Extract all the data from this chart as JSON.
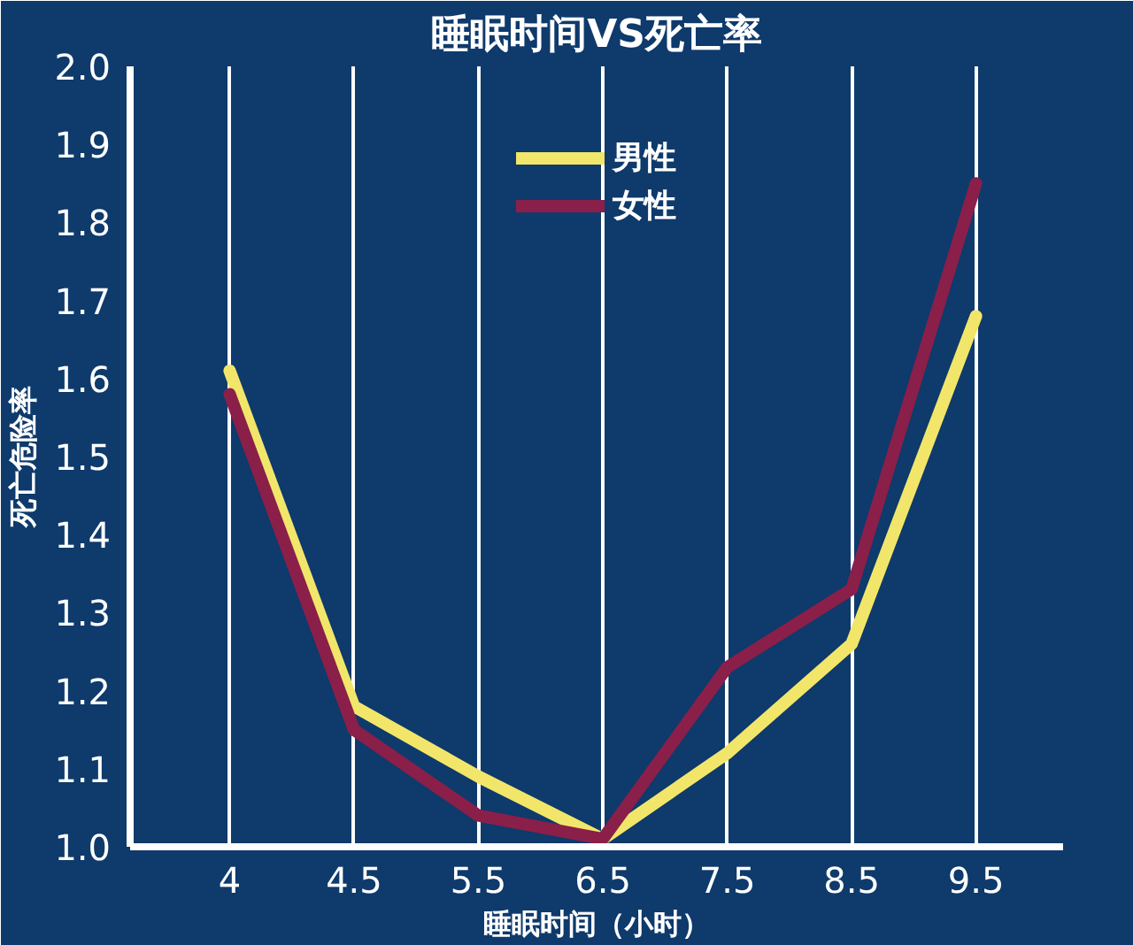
{
  "chart_data": {
    "type": "line",
    "title": "睡眠时间VS死亡率",
    "xlabel": "睡眠时间（小时）",
    "ylabel": "死亡危险率",
    "categories": [
      "4",
      "4.5",
      "5.5",
      "6.5",
      "7.5",
      "8.5",
      "9.5"
    ],
    "series": [
      {
        "name": "男性",
        "color": "#f2e66a",
        "values": [
          1.61,
          1.18,
          1.09,
          1.01,
          1.12,
          1.26,
          1.68
        ]
      },
      {
        "name": "女性",
        "color": "#8a1f4a",
        "values": [
          1.58,
          1.15,
          1.04,
          1.01,
          1.23,
          1.33,
          1.85
        ]
      }
    ],
    "ylim": [
      1.0,
      2.0
    ],
    "yticks": [
      {
        "value": 1.0,
        "label": "1.0"
      },
      1.1,
      1.2,
      1.3,
      1.4,
      1.5,
      1.6,
      1.7,
      1.8,
      1.9,
      {
        "value": 2.0,
        "label": "2.0"
      }
    ],
    "grid": "x",
    "legend": "top",
    "marker": "none",
    "line_style": "solid"
  }
}
